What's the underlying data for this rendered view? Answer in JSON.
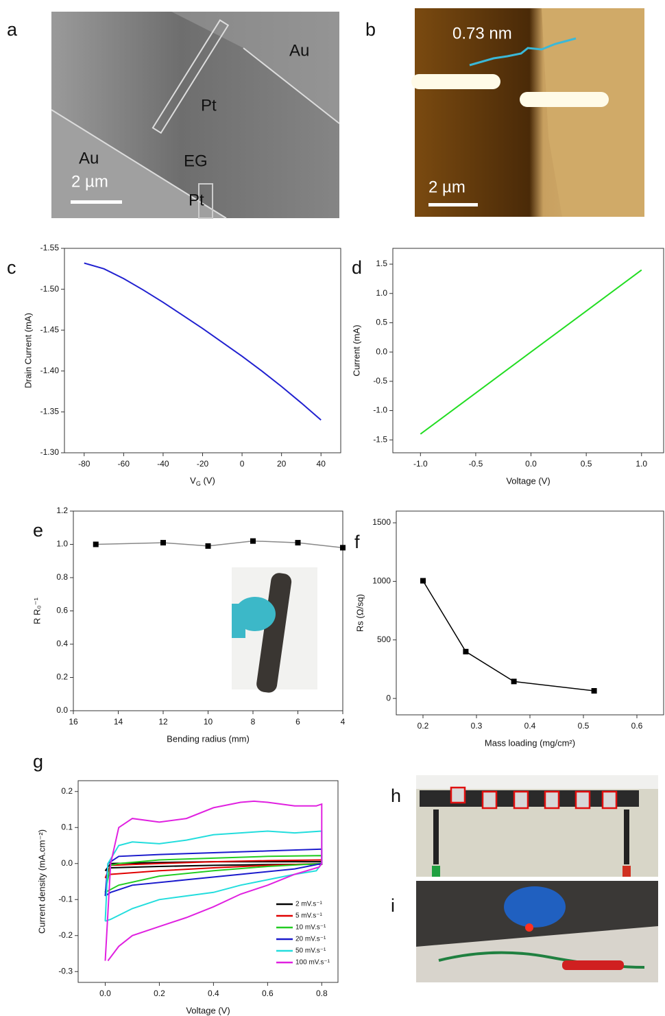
{
  "panels": {
    "a": {
      "label": "a",
      "texts": [
        "Au",
        "Pt",
        "EG",
        "Au",
        "Pt",
        "2 µm"
      ]
    },
    "b": {
      "label": "b",
      "texts": [
        "0.73 nm",
        "2 µm"
      ]
    },
    "h": {
      "label": "h"
    },
    "i": {
      "label": "i"
    }
  },
  "chart_data": [
    {
      "type": "line",
      "panel": "c",
      "xlabel": [
        "V",
        "G",
        " (V)"
      ],
      "ylabel": "Drain Current (mA)",
      "x": [
        -80,
        -70,
        -60,
        -50,
        -40,
        -30,
        -20,
        -10,
        0,
        10,
        20,
        30,
        40
      ],
      "values": [
        -1.532,
        -1.525,
        -1.513,
        -1.499,
        -1.484,
        -1.468,
        -1.452,
        -1.435,
        -1.418,
        -1.4,
        -1.381,
        -1.361,
        -1.34
      ],
      "color": "#2020d0",
      "xlim": [
        -90,
        50
      ],
      "ylim": [
        -1.3,
        -1.55
      ],
      "xticks": [
        -80,
        -60,
        -40,
        -20,
        0,
        20,
        40
      ],
      "yticks": [
        {
          "value": -1.3,
          "label": "-1.30"
        },
        -1.35,
        {
          "value": -1.4,
          "label": "-1.40"
        },
        -1.45,
        {
          "value": -1.5,
          "label": "-1.50"
        },
        -1.55
      ]
    },
    {
      "type": "line",
      "panel": "d",
      "xlabel": "Voltage (V)",
      "ylabel": "Current (mA)",
      "x": [
        -1,
        -0.5,
        0,
        0.5,
        1
      ],
      "values": [
        -1.4,
        -0.7,
        0,
        0.7,
        1.4
      ],
      "color": "#22dd22",
      "xlim": [
        -1.25,
        1.2
      ],
      "ylim": [
        -1.72,
        1.77
      ],
      "xticks": [
        {
          "value": -1,
          "label": "-1.0"
        },
        -0.5,
        {
          "value": 0,
          "label": "0.0"
        },
        0.5,
        {
          "value": 1,
          "label": "1.0"
        }
      ],
      "yticks": [
        -1.5,
        {
          "value": -1,
          "label": "-1.0"
        },
        -0.5,
        {
          "value": 0,
          "label": "0.0"
        },
        0.5,
        {
          "value": 1,
          "label": "1.0"
        },
        1.5
      ]
    },
    {
      "type": "line",
      "panel": "e",
      "xlabel": "Bending radius (mm)",
      "ylabel": "R R₀⁻¹",
      "markers": true,
      "x": [
        15,
        12,
        10,
        8,
        6,
        4
      ],
      "values": [
        1.0,
        1.01,
        0.99,
        1.02,
        1.01,
        0.98
      ],
      "color": "#888888",
      "marker_color": "#000000",
      "xlim": [
        16,
        4
      ],
      "ylim": [
        0,
        1.2
      ],
      "xticks": [
        16,
        14,
        12,
        10,
        8,
        6,
        4
      ],
      "yticks": [
        {
          "value": 0,
          "label": "0.0"
        },
        0.2,
        0.4,
        0.6,
        0.8,
        {
          "value": 1,
          "label": "1.0"
        },
        1.2
      ]
    },
    {
      "type": "line",
      "panel": "f",
      "xlabel": "Mass loading (mg/cm²)",
      "ylabel": "Rs (Ω/sq)",
      "markers": true,
      "x": [
        0.2,
        0.28,
        0.37,
        0.52
      ],
      "values": [
        1005,
        400,
        145,
        65
      ],
      "color": "#000000",
      "marker_color": "#000000",
      "xlim": [
        0.15,
        0.65
      ],
      "ylim": [
        -140,
        1600
      ],
      "xticks": [
        0.2,
        0.3,
        0.4,
        0.5,
        0.6
      ],
      "yticks": [
        0,
        500,
        1000,
        1500
      ]
    },
    {
      "type": "line",
      "panel": "g",
      "xlabel": "Voltage (V)",
      "ylabel": "Current density (mA.cm⁻²)",
      "legend": "lower right",
      "xlim": [
        -0.1,
        0.86
      ],
      "ylim": [
        -0.33,
        0.23
      ],
      "xticks": [
        {
          "value": 0,
          "label": "0.0"
        },
        0.2,
        0.4,
        0.6,
        0.8
      ],
      "yticks": [
        -0.3,
        -0.2,
        -0.1,
        {
          "value": 0,
          "label": "0.0"
        },
        0.1,
        0.2
      ],
      "series": [
        {
          "name": "2 mV.s⁻¹",
          "color": "#000000",
          "x": [
            0,
            0.02,
            0.2,
            0.4,
            0.6,
            0.8,
            0.8,
            0.6,
            0.4,
            0.2,
            0.02,
            0
          ],
          "values": [
            -0.02,
            0,
            0.003,
            0.005,
            0.005,
            0.005,
            -0.002,
            -0.003,
            -0.005,
            -0.008,
            -0.012,
            -0.02
          ]
        },
        {
          "name": "5 mV.s⁻¹",
          "color": "#e00000",
          "x": [
            0,
            0.02,
            0.2,
            0.4,
            0.6,
            0.8,
            0.8,
            0.6,
            0.4,
            0.2,
            0.02,
            0
          ],
          "values": [
            -0.04,
            -0.005,
            0,
            0.005,
            0.008,
            0.01,
            0,
            -0.005,
            -0.012,
            -0.02,
            -0.03,
            -0.04
          ]
        },
        {
          "name": "10 mV.s⁻¹",
          "color": "#22cc22",
          "x": [
            0,
            0.02,
            0.05,
            0.2,
            0.4,
            0.6,
            0.8,
            0.8,
            0.6,
            0.4,
            0.2,
            0.05,
            0
          ],
          "values": [
            -0.08,
            -0.005,
            0,
            0.01,
            0.015,
            0.02,
            0.022,
            0,
            -0.008,
            -0.02,
            -0.035,
            -0.06,
            -0.08
          ]
        },
        {
          "name": "20 mV.s⁻¹",
          "color": "#1a1acc",
          "x": [
            0,
            0.01,
            0.05,
            0.2,
            0.4,
            0.6,
            0.8,
            0.8,
            0.7,
            0.5,
            0.3,
            0.1,
            0.02,
            0
          ],
          "values": [
            -0.09,
            0,
            0.02,
            0.025,
            0.03,
            0.035,
            0.04,
            0,
            -0.015,
            -0.03,
            -0.045,
            -0.06,
            -0.08,
            -0.09
          ]
        },
        {
          "name": "50 mV.s⁻¹",
          "color": "#22dddd",
          "x": [
            0,
            0.01,
            0.05,
            0.1,
            0.2,
            0.3,
            0.4,
            0.5,
            0.6,
            0.7,
            0.8,
            0.8,
            0.78,
            0.7,
            0.6,
            0.5,
            0.4,
            0.3,
            0.2,
            0.1,
            0.02,
            0
          ],
          "values": [
            -0.16,
            0,
            0.05,
            0.06,
            0.055,
            0.065,
            0.08,
            0.085,
            0.09,
            0.085,
            0.09,
            0,
            -0.02,
            -0.03,
            -0.045,
            -0.06,
            -0.08,
            -0.09,
            -0.1,
            -0.125,
            -0.155,
            -0.16
          ]
        },
        {
          "name": "100 mV.s⁻¹",
          "color": "#e020e0",
          "x": [
            0,
            0.02,
            0.05,
            0.1,
            0.2,
            0.3,
            0.4,
            0.5,
            0.55,
            0.6,
            0.7,
            0.78,
            0.8,
            0.8,
            0.79,
            0.7,
            0.6,
            0.5,
            0.4,
            0.3,
            0.2,
            0.1,
            0.05,
            0.01
          ],
          "values": [
            -0.27,
            0,
            0.1,
            0.125,
            0.115,
            0.125,
            0.155,
            0.17,
            0.173,
            0.17,
            0.16,
            0.16,
            0.165,
            0,
            -0.01,
            -0.03,
            -0.06,
            -0.085,
            -0.12,
            -0.15,
            -0.175,
            -0.2,
            -0.23,
            -0.27
          ]
        }
      ]
    }
  ]
}
